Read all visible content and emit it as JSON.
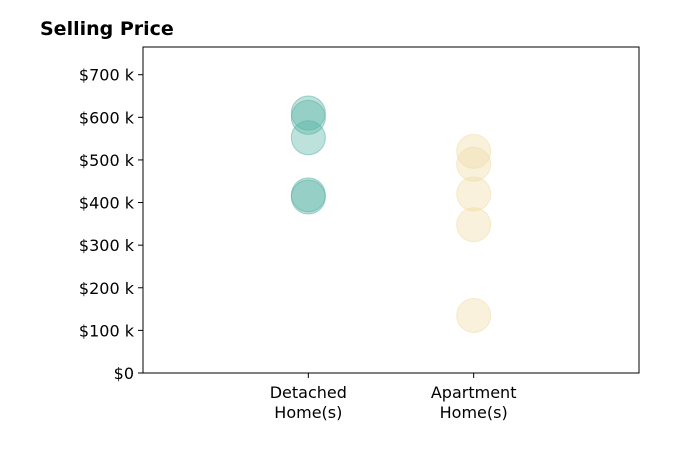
{
  "chart_data": {
    "type": "scatter",
    "title": "Selling Price",
    "xlabel": "",
    "ylabel": "",
    "categories": [
      [
        "Detached",
        "Home(s)"
      ],
      [
        "Apartment",
        "Home(s)"
      ]
    ],
    "y_ticks": [
      {
        "value": 0,
        "label": "$0"
      },
      {
        "value": 100,
        "label": "$100 k"
      },
      {
        "value": 200,
        "label": "$200 k"
      },
      {
        "value": 300,
        "label": "$300 k"
      },
      {
        "value": 400,
        "label": "$400 k"
      },
      {
        "value": 500,
        "label": "$500 k"
      },
      {
        "value": 600,
        "label": "$600 k"
      },
      {
        "value": 700,
        "label": "$700 k"
      }
    ],
    "ylim": [
      0,
      765
    ],
    "xlim": [
      0,
      3
    ],
    "grid": false,
    "series": [
      {
        "category_index": 0,
        "color": "#5ab4a4",
        "values": [
          610,
          600,
          552,
          418,
          413
        ]
      },
      {
        "category_index": 1,
        "color": "#f0dca8",
        "values": [
          520,
          490,
          420,
          348,
          135
        ]
      }
    ]
  }
}
